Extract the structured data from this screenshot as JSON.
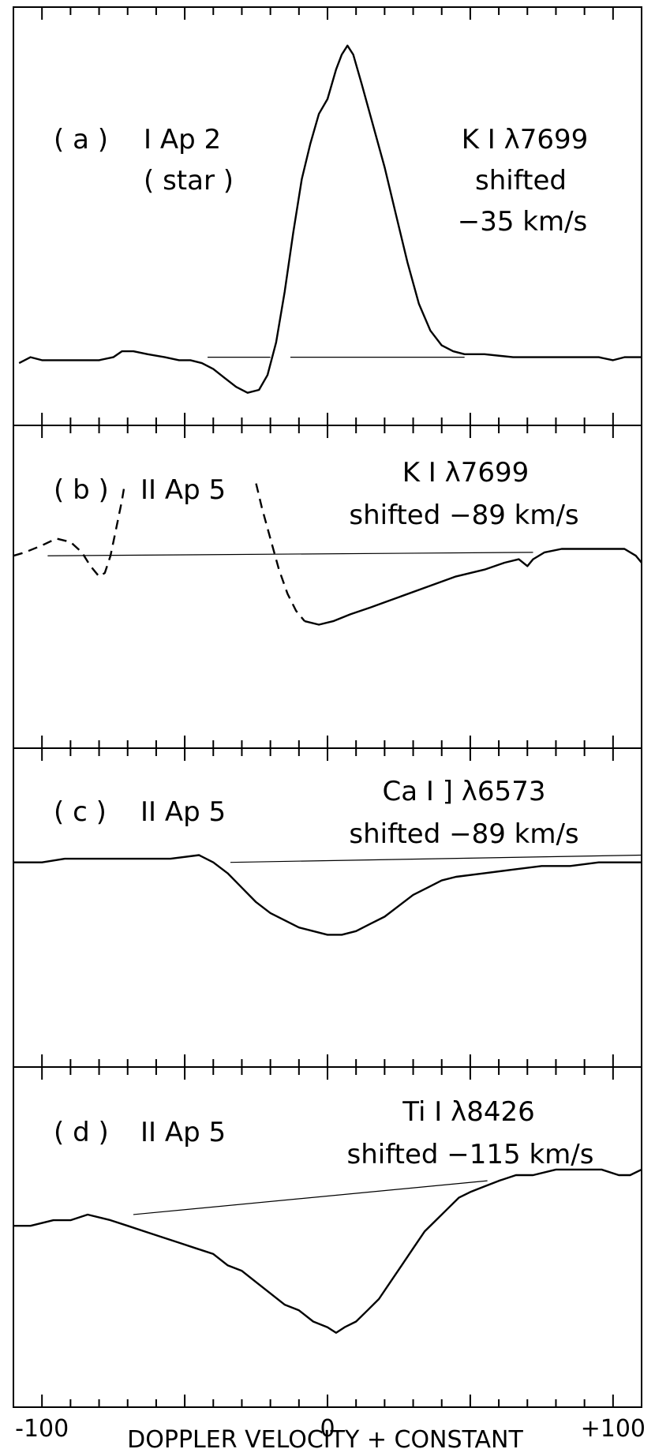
{
  "figure": {
    "xlabel": "DOPPLER VELOCITY + CONSTANT",
    "x_tick_labels": [
      "-100",
      "0",
      "+100"
    ]
  },
  "chart_data": [
    {
      "type": "line",
      "panel_label": "( a )",
      "object_label": "I Ap 2",
      "object_sublabel": "( star )",
      "line_label": "K I λ7699",
      "shift_label_1": "shifted",
      "shift_label_2": "−35 km/s",
      "xlim": [
        -110,
        110
      ],
      "x_major_ticks": [
        -100,
        0,
        100
      ],
      "ylim": [
        -0.15,
        1.1
      ],
      "continuum": {
        "x": [
          -42,
          48
        ],
        "y": [
          0,
          0
        ],
        "gap": [
          -20,
          -13
        ]
      },
      "series": [
        {
          "style": "solid",
          "points": [
            [
              -108,
              -0.02
            ],
            [
              -104,
              0.0
            ],
            [
              -100,
              -0.01
            ],
            [
              -90,
              -0.01
            ],
            [
              -80,
              -0.01
            ],
            [
              -75,
              0.0
            ],
            [
              -72,
              0.02
            ],
            [
              -68,
              0.02
            ],
            [
              -63,
              0.01
            ],
            [
              -57,
              0.0
            ],
            [
              -52,
              -0.01
            ],
            [
              -48,
              -0.01
            ],
            [
              -44,
              -0.02
            ],
            [
              -40,
              -0.04
            ],
            [
              -36,
              -0.07
            ],
            [
              -32,
              -0.1
            ],
            [
              -28,
              -0.12
            ],
            [
              -24,
              -0.11
            ],
            [
              -21,
              -0.06
            ],
            [
              -18,
              0.05
            ],
            [
              -15,
              0.22
            ],
            [
              -12,
              0.42
            ],
            [
              -9,
              0.6
            ],
            [
              -6,
              0.72
            ],
            [
              -3,
              0.82
            ],
            [
              0,
              0.87
            ],
            [
              3,
              0.97
            ],
            [
              5,
              1.02
            ],
            [
              7,
              1.05
            ],
            [
              9,
              1.02
            ],
            [
              12,
              0.92
            ],
            [
              16,
              0.78
            ],
            [
              20,
              0.64
            ],
            [
              24,
              0.48
            ],
            [
              28,
              0.32
            ],
            [
              32,
              0.18
            ],
            [
              36,
              0.09
            ],
            [
              40,
              0.04
            ],
            [
              44,
              0.02
            ],
            [
              48,
              0.01
            ],
            [
              55,
              0.01
            ],
            [
              65,
              0.0
            ],
            [
              75,
              0.0
            ],
            [
              85,
              0.0
            ],
            [
              95,
              0.0
            ],
            [
              100,
              -0.01
            ],
            [
              104,
              0.0
            ],
            [
              110,
              0.0
            ]
          ]
        }
      ]
    },
    {
      "type": "line",
      "panel_label": "( b )",
      "object_label": "II Ap 5",
      "line_label": "K I λ7699",
      "shift_label_1": "shifted −89 km/s",
      "xlim": [
        -110,
        110
      ],
      "x_major_ticks": [
        -100,
        0,
        100
      ],
      "ylim": [
        -0.5,
        0.3
      ],
      "continuum": {
        "x": [
          -98,
          72
        ],
        "y": [
          -0.01,
          0.0
        ]
      },
      "series": [
        {
          "style": "dashed",
          "points": [
            [
              -110,
              -0.01
            ],
            [
              -106,
              0.0
            ],
            [
              -100,
              0.02
            ],
            [
              -95,
              0.04
            ],
            [
              -90,
              0.03
            ],
            [
              -86,
              0.0
            ],
            [
              -83,
              -0.04
            ],
            [
              -80,
              -0.07
            ],
            [
              -78,
              -0.06
            ],
            [
              -76,
              -0.01
            ],
            [
              -74,
              0.07
            ],
            [
              -72,
              0.15
            ],
            [
              -71,
              0.2
            ]
          ]
        },
        {
          "style": "dashed",
          "points": [
            [
              -25,
              0.2
            ],
            [
              -23,
              0.13
            ],
            [
              -20,
              0.04
            ],
            [
              -17,
              -0.05
            ],
            [
              -14,
              -0.12
            ],
            [
              -11,
              -0.17
            ],
            [
              -8,
              -0.2
            ]
          ]
        },
        {
          "style": "solid",
          "points": [
            [
              -8,
              -0.2
            ],
            [
              -3,
              -0.21
            ],
            [
              2,
              -0.2
            ],
            [
              8,
              -0.18
            ],
            [
              15,
              -0.16
            ],
            [
              25,
              -0.13
            ],
            [
              35,
              -0.1
            ],
            [
              45,
              -0.07
            ],
            [
              55,
              -0.05
            ],
            [
              62,
              -0.03
            ],
            [
              67,
              -0.02
            ],
            [
              70,
              -0.04
            ],
            [
              72,
              -0.02
            ],
            [
              76,
              0.0
            ],
            [
              82,
              0.01
            ],
            [
              90,
              0.01
            ],
            [
              98,
              0.01
            ],
            [
              104,
              0.01
            ],
            [
              108,
              -0.01
            ],
            [
              110,
              -0.03
            ]
          ]
        }
      ]
    },
    {
      "type": "line",
      "panel_label": "( c )",
      "object_label": "II Ap 5",
      "line_label": "Ca I ] λ6573",
      "shift_label_1": "shifted −89 km/s",
      "xlim": [
        -110,
        110
      ],
      "x_major_ticks": [
        -100,
        0,
        100
      ],
      "ylim": [
        -0.5,
        0.25
      ],
      "continuum": {
        "x": [
          -34,
          110
        ],
        "y": [
          0.0,
          0.02
        ]
      },
      "series": [
        {
          "style": "solid",
          "points": [
            [
              -110,
              0.0
            ],
            [
              -100,
              0.0
            ],
            [
              -92,
              0.01
            ],
            [
              -85,
              0.01
            ],
            [
              -75,
              0.01
            ],
            [
              -65,
              0.01
            ],
            [
              -55,
              0.01
            ],
            [
              -45,
              0.02
            ],
            [
              -40,
              0.0
            ],
            [
              -35,
              -0.03
            ],
            [
              -30,
              -0.07
            ],
            [
              -25,
              -0.11
            ],
            [
              -20,
              -0.14
            ],
            [
              -15,
              -0.16
            ],
            [
              -10,
              -0.18
            ],
            [
              -5,
              -0.19
            ],
            [
              0,
              -0.2
            ],
            [
              5,
              -0.2
            ],
            [
              10,
              -0.19
            ],
            [
              15,
              -0.17
            ],
            [
              20,
              -0.15
            ],
            [
              25,
              -0.12
            ],
            [
              30,
              -0.09
            ],
            [
              35,
              -0.07
            ],
            [
              40,
              -0.05
            ],
            [
              45,
              -0.04
            ],
            [
              55,
              -0.03
            ],
            [
              65,
              -0.02
            ],
            [
              75,
              -0.01
            ],
            [
              85,
              -0.01
            ],
            [
              95,
              0.0
            ],
            [
              105,
              0.0
            ],
            [
              110,
              0.0
            ]
          ]
        }
      ]
    },
    {
      "type": "line",
      "panel_label": "( d )",
      "object_label": "II Ap 5",
      "line_label": "Ti I λ8426",
      "shift_label_1": "shifted −115 km/s",
      "xlim": [
        -110,
        110
      ],
      "x_major_ticks": [
        -100,
        0,
        100
      ],
      "ylim": [
        -0.3,
        0.22
      ],
      "continuum": {
        "x": [
          -68,
          56
        ],
        "y": [
          0.0,
          0.06
        ]
      },
      "series": [
        {
          "style": "solid",
          "points": [
            [
              -110,
              -0.02
            ],
            [
              -104,
              -0.02
            ],
            [
              -96,
              -0.01
            ],
            [
              -90,
              -0.01
            ],
            [
              -84,
              0.0
            ],
            [
              -76,
              -0.01
            ],
            [
              -70,
              -0.02
            ],
            [
              -64,
              -0.03
            ],
            [
              -58,
              -0.04
            ],
            [
              -52,
              -0.05
            ],
            [
              -46,
              -0.06
            ],
            [
              -40,
              -0.07
            ],
            [
              -35,
              -0.09
            ],
            [
              -30,
              -0.1
            ],
            [
              -25,
              -0.12
            ],
            [
              -20,
              -0.14
            ],
            [
              -15,
              -0.16
            ],
            [
              -10,
              -0.17
            ],
            [
              -5,
              -0.19
            ],
            [
              0,
              -0.2
            ],
            [
              3,
              -0.21
            ],
            [
              6,
              -0.2
            ],
            [
              10,
              -0.19
            ],
            [
              14,
              -0.17
            ],
            [
              18,
              -0.15
            ],
            [
              22,
              -0.12
            ],
            [
              26,
              -0.09
            ],
            [
              30,
              -0.06
            ],
            [
              34,
              -0.03
            ],
            [
              38,
              -0.01
            ],
            [
              42,
              0.01
            ],
            [
              46,
              0.03
            ],
            [
              50,
              0.04
            ],
            [
              55,
              0.05
            ],
            [
              60,
              0.06
            ],
            [
              66,
              0.07
            ],
            [
              72,
              0.07
            ],
            [
              80,
              0.08
            ],
            [
              88,
              0.08
            ],
            [
              96,
              0.08
            ],
            [
              102,
              0.07
            ],
            [
              106,
              0.07
            ],
            [
              110,
              0.08
            ]
          ]
        }
      ]
    }
  ]
}
